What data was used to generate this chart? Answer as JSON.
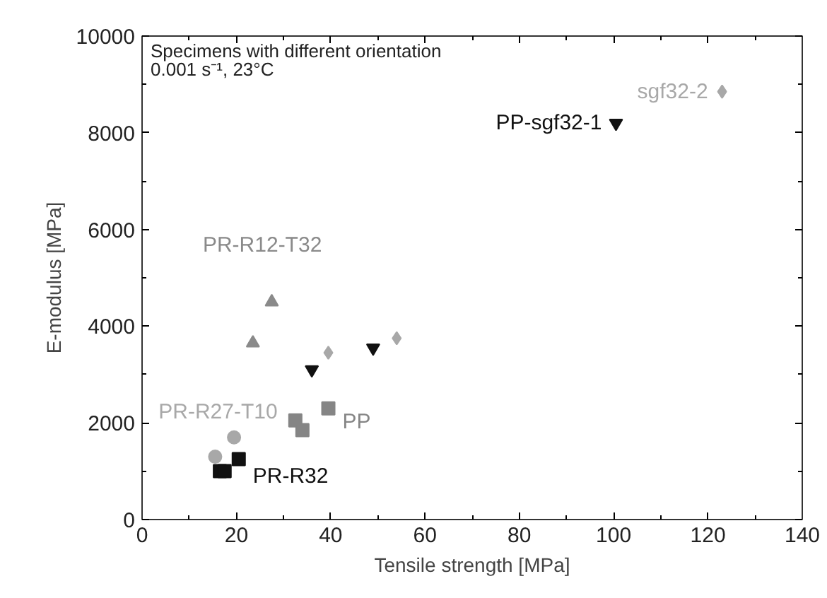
{
  "chart_data": {
    "type": "scatter",
    "xlabel": "Tensile strength [MPa]",
    "ylabel": "E-modulus [MPa]",
    "annotations": [
      "Specimens with different orientation",
      "0.001 s⁻¹, 23°C"
    ],
    "xlim": [
      0,
      140
    ],
    "xticks": [
      0,
      20,
      40,
      60,
      80,
      100,
      120,
      140
    ],
    "ylim": [
      0,
      10000
    ],
    "yticks": [
      0,
      2000,
      4000,
      6000,
      8000,
      10000
    ],
    "grid": false,
    "series": [
      {
        "name": "PR-R12-T32",
        "color": "#8a8a8a",
        "marker": "triangle",
        "x": [
          23.5,
          27.5
        ],
        "values": [
          3650,
          4500
        ]
      },
      {
        "name": "PR-R27-T10",
        "color": "#a8a8a8",
        "marker": "circle",
        "x": [
          15.5,
          19.5
        ],
        "values": [
          1300,
          1700
        ]
      },
      {
        "name": "PR-R32",
        "color": "#111111",
        "marker": "square",
        "x": [
          16.5,
          17.5,
          20.5
        ],
        "values": [
          1000,
          1000,
          1250
        ]
      },
      {
        "name": "PP",
        "color": "#858585",
        "marker": "square",
        "x": [
          32.5,
          34,
          39.5
        ],
        "values": [
          2050,
          1850,
          2300
        ]
      },
      {
        "name": "PP-sgf32-1",
        "color": "#111111",
        "x": [
          36,
          49,
          100.5
        ],
        "values": [
          3100,
          3550,
          8200
        ]
      },
      {
        "name": "sgf32-2",
        "color": "#a8a8a8",
        "marker": "diamond",
        "x": [
          39.5,
          54,
          123
        ],
        "values": [
          3450,
          3750,
          8850
        ]
      }
    ]
  }
}
